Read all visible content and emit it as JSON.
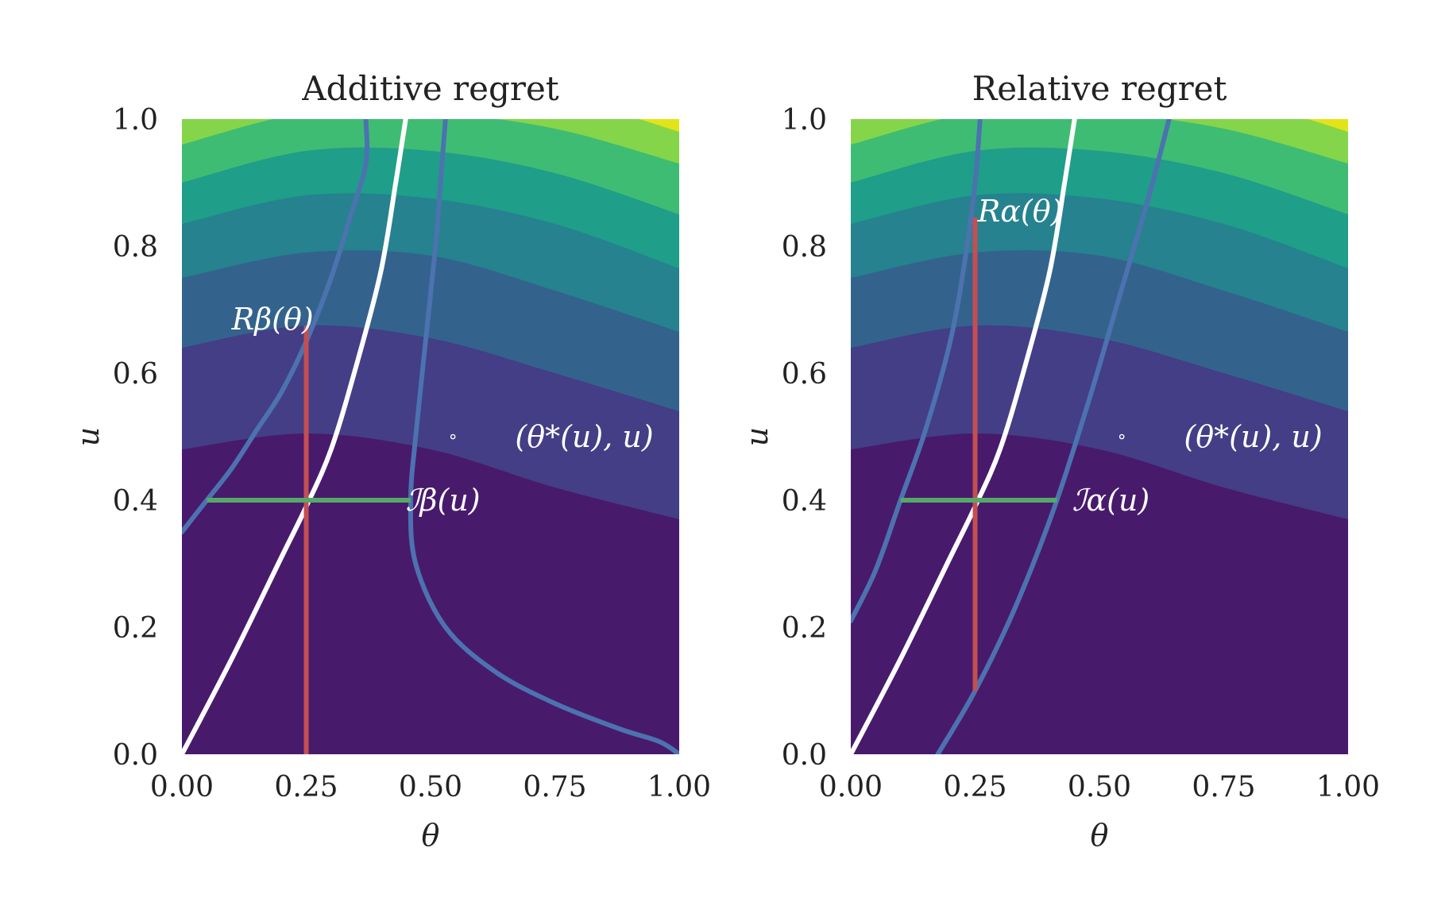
{
  "chart_data": [
    {
      "type": "contour",
      "title": "Additive regret",
      "xlabel": "θ",
      "ylabel": "u",
      "xlim": [
        0,
        1
      ],
      "ylim": [
        0,
        1
      ],
      "xticks": [
        "0.00",
        "0.25",
        "0.50",
        "0.75",
        "1.00"
      ],
      "yticks": [
        "0.0",
        "0.2",
        "0.4",
        "0.6",
        "0.8",
        "1.0"
      ],
      "grid": false,
      "colormap": [
        "#481a6c",
        "#433e85",
        "#33638d",
        "#26828e",
        "#1f9e89",
        "#3fbc73",
        "#85d54a",
        "#e2e418"
      ],
      "contour_boundaries": [
        {
          "level": 1,
          "points": [
            [
              0,
              0.48
            ],
            [
              0.25,
              0.505
            ],
            [
              0.5,
              0.48
            ],
            [
              0.75,
              0.42
            ],
            [
              1.0,
              0.37
            ]
          ]
        },
        {
          "level": 2,
          "points": [
            [
              0,
              0.64
            ],
            [
              0.25,
              0.675
            ],
            [
              0.5,
              0.655
            ],
            [
              0.75,
              0.6
            ],
            [
              1.0,
              0.54
            ]
          ]
        },
        {
          "level": 3,
          "points": [
            [
              0,
              0.75
            ],
            [
              0.25,
              0.79
            ],
            [
              0.5,
              0.785
            ],
            [
              0.75,
              0.73
            ],
            [
              1.0,
              0.665
            ]
          ]
        },
        {
          "level": 4,
          "points": [
            [
              0,
              0.835
            ],
            [
              0.25,
              0.88
            ],
            [
              0.5,
              0.875
            ],
            [
              0.75,
              0.835
            ],
            [
              1.0,
              0.765
            ]
          ]
        },
        {
          "level": 5,
          "points": [
            [
              0,
              0.9
            ],
            [
              0.25,
              0.95
            ],
            [
              0.5,
              0.95
            ],
            [
              0.75,
              0.915
            ],
            [
              1.0,
              0.85
            ]
          ]
        },
        {
          "level": 6,
          "points": [
            [
              0,
              0.96
            ],
            [
              0.25,
              1.01
            ],
            [
              0.5,
              1.01
            ],
            [
              0.75,
              0.985
            ],
            [
              1.0,
              0.93
            ]
          ]
        },
        {
          "level": 7,
          "points": [
            [
              0.92,
              1.0
            ],
            [
              1.0,
              0.98
            ]
          ]
        }
      ],
      "curves": [
        {
          "name": "white",
          "color": "#ffffff",
          "points": [
            [
              0.0,
              0.0
            ],
            [
              0.1,
              0.15
            ],
            [
              0.2,
              0.31
            ],
            [
              0.25,
              0.39
            ],
            [
              0.3,
              0.48
            ],
            [
              0.35,
              0.61
            ],
            [
              0.4,
              0.76
            ],
            [
              0.43,
              0.9
            ],
            [
              0.45,
              1.0
            ]
          ]
        },
        {
          "name": "blue-left",
          "color": "#4c72b0",
          "points": [
            [
              0.0,
              0.35
            ],
            [
              0.05,
              0.4
            ],
            [
              0.1,
              0.45
            ],
            [
              0.15,
              0.51
            ],
            [
              0.2,
              0.57
            ],
            [
              0.25,
              0.65
            ],
            [
              0.3,
              0.75
            ],
            [
              0.34,
              0.85
            ],
            [
              0.37,
              0.93
            ],
            [
              0.37,
              1.0
            ]
          ]
        },
        {
          "name": "blue-right",
          "color": "#4c72b0",
          "points": [
            [
              0.53,
              1.0
            ],
            [
              0.52,
              0.9
            ],
            [
              0.51,
              0.8
            ],
            [
              0.49,
              0.65
            ],
            [
              0.47,
              0.5
            ],
            [
              0.46,
              0.4
            ],
            [
              0.47,
              0.3
            ],
            [
              0.53,
              0.2
            ],
            [
              0.63,
              0.13
            ],
            [
              0.75,
              0.08
            ],
            [
              0.88,
              0.04
            ],
            [
              0.96,
              0.02
            ],
            [
              1.0,
              0.0
            ]
          ]
        }
      ],
      "segments": [
        {
          "name": "regret-interval",
          "color": "#c44e52",
          "x": [
            0.25,
            0.25
          ],
          "y": [
            0.0,
            0.675
          ]
        },
        {
          "name": "interval",
          "color": "#55a868",
          "x": [
            0.05,
            0.46
          ],
          "y": [
            0.4,
            0.4
          ]
        }
      ],
      "point": {
        "x": 0.545,
        "y": 0.5
      },
      "annotations": [
        {
          "text": "Rβ(θ)",
          "x": 0.1,
          "y": 0.685
        },
        {
          "text": "(θ*(u), u)",
          "x": 0.67,
          "y": 0.5
        },
        {
          "text": "ℐβ(u)",
          "x": 0.45,
          "y": 0.4
        }
      ]
    },
    {
      "type": "contour",
      "title": "Relative regret",
      "xlabel": "θ",
      "ylabel": "u",
      "xlim": [
        0,
        1
      ],
      "ylim": [
        0,
        1
      ],
      "xticks": [
        "0.00",
        "0.25",
        "0.50",
        "0.75",
        "1.00"
      ],
      "yticks": [
        "0.0",
        "0.2",
        "0.4",
        "0.6",
        "0.8",
        "1.0"
      ],
      "grid": false,
      "colormap": [
        "#481a6c",
        "#433e85",
        "#33638d",
        "#26828e",
        "#1f9e89",
        "#3fbc73",
        "#85d54a",
        "#e2e418"
      ],
      "contour_boundaries": [
        {
          "level": 1,
          "points": [
            [
              0,
              0.48
            ],
            [
              0.25,
              0.505
            ],
            [
              0.5,
              0.48
            ],
            [
              0.75,
              0.42
            ],
            [
              1.0,
              0.37
            ]
          ]
        },
        {
          "level": 2,
          "points": [
            [
              0,
              0.64
            ],
            [
              0.25,
              0.675
            ],
            [
              0.5,
              0.655
            ],
            [
              0.75,
              0.6
            ],
            [
              1.0,
              0.54
            ]
          ]
        },
        {
          "level": 3,
          "points": [
            [
              0,
              0.75
            ],
            [
              0.25,
              0.79
            ],
            [
              0.5,
              0.785
            ],
            [
              0.75,
              0.73
            ],
            [
              1.0,
              0.665
            ]
          ]
        },
        {
          "level": 4,
          "points": [
            [
              0,
              0.835
            ],
            [
              0.25,
              0.88
            ],
            [
              0.5,
              0.875
            ],
            [
              0.75,
              0.835
            ],
            [
              1.0,
              0.765
            ]
          ]
        },
        {
          "level": 5,
          "points": [
            [
              0,
              0.9
            ],
            [
              0.25,
              0.95
            ],
            [
              0.5,
              0.95
            ],
            [
              0.75,
              0.915
            ],
            [
              1.0,
              0.85
            ]
          ]
        },
        {
          "level": 6,
          "points": [
            [
              0,
              0.96
            ],
            [
              0.25,
              1.01
            ],
            [
              0.5,
              1.01
            ],
            [
              0.75,
              0.985
            ],
            [
              1.0,
              0.93
            ]
          ]
        },
        {
          "level": 7,
          "points": [
            [
              0.92,
              1.0
            ],
            [
              1.0,
              0.98
            ]
          ]
        }
      ],
      "curves": [
        {
          "name": "white",
          "color": "#ffffff",
          "points": [
            [
              0.0,
              0.0
            ],
            [
              0.1,
              0.15
            ],
            [
              0.2,
              0.31
            ],
            [
              0.25,
              0.39
            ],
            [
              0.3,
              0.48
            ],
            [
              0.35,
              0.61
            ],
            [
              0.4,
              0.76
            ],
            [
              0.43,
              0.9
            ],
            [
              0.45,
              1.0
            ]
          ]
        },
        {
          "name": "blue-left",
          "color": "#4c72b0",
          "points": [
            [
              0.0,
              0.21
            ],
            [
              0.05,
              0.29
            ],
            [
              0.1,
              0.4
            ],
            [
              0.15,
              0.51
            ],
            [
              0.2,
              0.65
            ],
            [
              0.23,
              0.78
            ],
            [
              0.25,
              0.9
            ],
            [
              0.26,
              1.0
            ]
          ]
        },
        {
          "name": "blue-right",
          "color": "#4c72b0",
          "points": [
            [
              0.175,
              0.0
            ],
            [
              0.25,
              0.1
            ],
            [
              0.33,
              0.23
            ],
            [
              0.41,
              0.39
            ],
            [
              0.48,
              0.56
            ],
            [
              0.54,
              0.72
            ],
            [
              0.6,
              0.88
            ],
            [
              0.64,
              1.0
            ]
          ]
        }
      ],
      "segments": [
        {
          "name": "regret-interval",
          "color": "#c44e52",
          "x": [
            0.25,
            0.25
          ],
          "y": [
            0.1,
            0.845
          ]
        },
        {
          "name": "interval",
          "color": "#55a868",
          "x": [
            0.1,
            0.415
          ],
          "y": [
            0.4,
            0.4
          ]
        }
      ],
      "point": {
        "x": 0.545,
        "y": 0.5
      },
      "annotations": [
        {
          "text": "Rα(θ)",
          "x": 0.255,
          "y": 0.855
        },
        {
          "text": "(θ*(u), u)",
          "x": 0.67,
          "y": 0.5
        },
        {
          "text": "ℐα(u)",
          "x": 0.445,
          "y": 0.4
        }
      ]
    }
  ]
}
